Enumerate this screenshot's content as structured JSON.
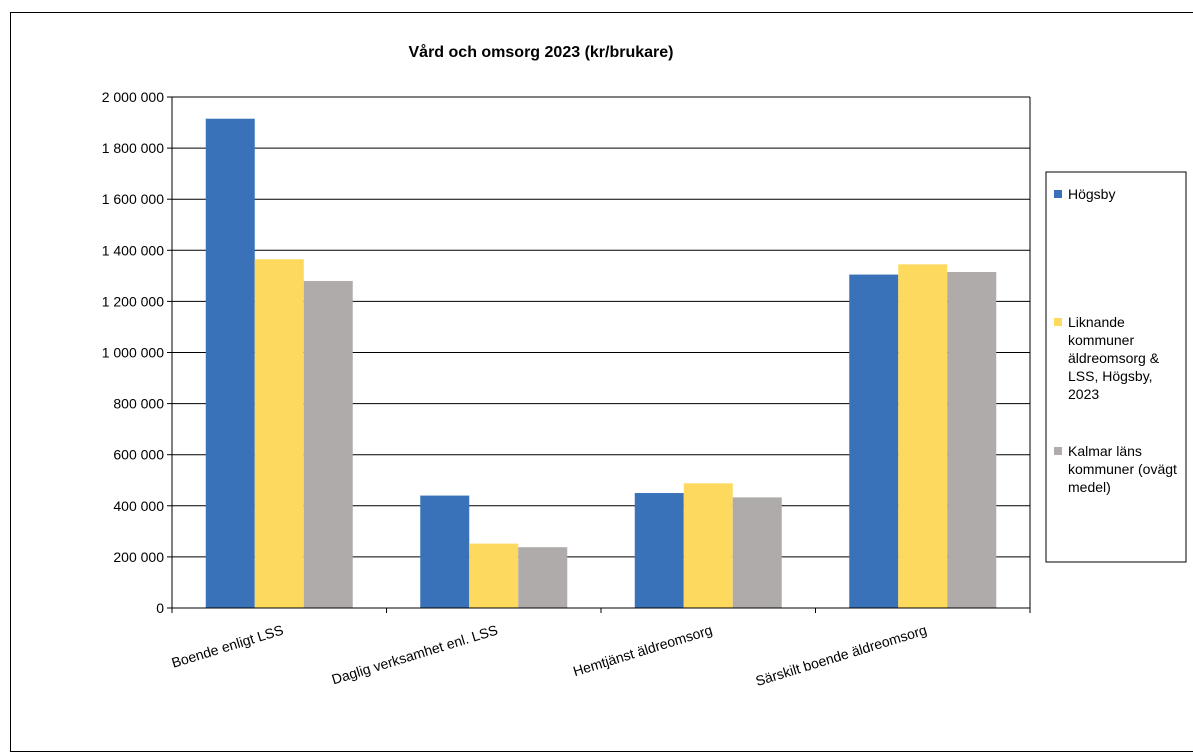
{
  "chart_data": {
    "type": "bar",
    "title": "Vård och omsorg 2023 (kr/brukare)",
    "xlabel": "",
    "ylabel": "",
    "categories": [
      "Boende enligt LSS",
      "Daglig verksamhet enl. LSS",
      "Hemtjänst äldreomsorg",
      "Särskilt boende äldreomsorg"
    ],
    "series": [
      {
        "name": "Högsby",
        "name_lines": [
          "Högsby"
        ],
        "color": "#3A72B9",
        "values": [
          1915000,
          440000,
          450000,
          1305000
        ]
      },
      {
        "name": "Liknande kommuner äldreomsorg & LSS, Högsby, 2023",
        "name_lines": [
          "Liknande",
          "kommuner",
          "äldreomsorg &",
          "LSS, Högsby,",
          "2023"
        ],
        "color": "#FDD95E",
        "values": [
          1365000,
          252000,
          488000,
          1345000
        ]
      },
      {
        "name": "Kalmar läns kommuner (ovägt medel)",
        "name_lines": [
          "Kalmar läns",
          "kommuner (ovägt",
          "medel)"
        ],
        "color": "#AFABAB",
        "values": [
          1280000,
          238000,
          433000,
          1315000
        ]
      }
    ],
    "ylim": [
      0,
      2000000
    ],
    "yticks": [
      0,
      200000,
      400000,
      600000,
      800000,
      1000000,
      1200000,
      1400000,
      1600000,
      1800000,
      2000000
    ],
    "ytick_labels": [
      "0",
      "200 000",
      "400 000",
      "600 000",
      "800 000",
      "1 000 000",
      "1 200 000",
      "1 400 000",
      "1 600 000",
      "1 800 000",
      "2 000 000"
    ],
    "grid": true,
    "legend_position": "right"
  }
}
